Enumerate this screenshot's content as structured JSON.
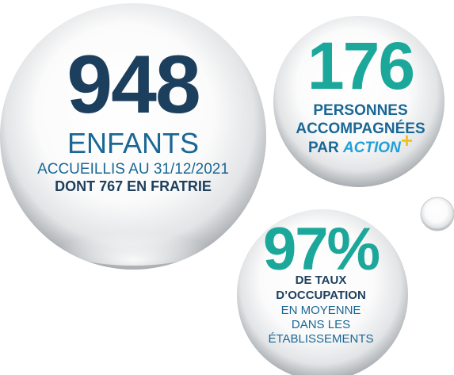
{
  "bubbles": [
    {
      "number": "948",
      "label": "ENFANTS",
      "lines": [
        "ACCUEILLIS AU 31/12/2021",
        "DONT 767 EN FRATRIE"
      ]
    },
    {
      "number": "176",
      "lines": [
        "PERSONNES",
        "ACCOMPAGNÉES",
        "PAR"
      ],
      "brand": "ACTION",
      "brand_mark": "+"
    },
    {
      "number": "97%",
      "lines": [
        "DE TAUX",
        "D’OCCUPATION",
        "EN MOYENNE",
        "DANS LES",
        "ÉTABLISSEMENTS"
      ]
    }
  ]
}
